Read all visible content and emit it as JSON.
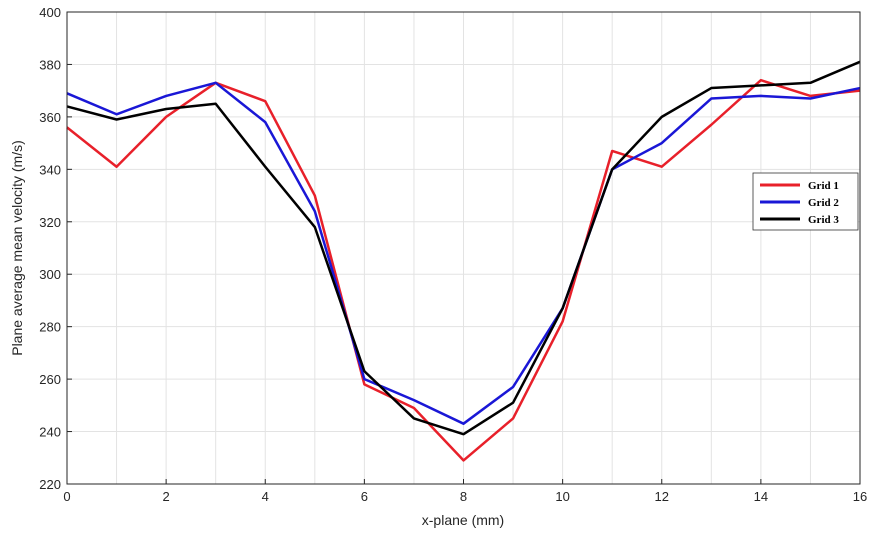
{
  "chart_data": {
    "type": "line",
    "xlabel": "x-plane (mm)",
    "ylabel": "Plane average mean velocity (m/s)",
    "xlim": [
      0,
      16
    ],
    "ylim": [
      220,
      400
    ],
    "xticks": [
      "0",
      "2",
      "4",
      "6",
      "8",
      "10",
      "12",
      "14",
      "16"
    ],
    "yticks": [
      "220",
      "240",
      "260",
      "280",
      "300",
      "320",
      "340",
      "360",
      "380",
      "400"
    ],
    "grid": true,
    "legend_position": "right",
    "x": [
      0,
      1,
      2,
      3,
      4,
      5,
      6,
      7,
      8,
      9,
      10,
      11,
      12,
      13,
      14,
      15,
      16
    ],
    "series": [
      {
        "name": "Grid 1",
        "color": "#e8202a",
        "values": [
          356,
          341,
          360,
          373,
          366,
          330,
          258,
          249,
          229,
          245,
          282,
          347,
          341,
          357,
          374,
          368,
          370
        ]
      },
      {
        "name": "Grid 2",
        "color": "#1a17d6",
        "values": [
          369,
          361,
          368,
          373,
          358,
          324,
          260,
          252,
          243,
          257,
          287,
          340,
          350,
          367,
          368,
          367,
          371
        ]
      },
      {
        "name": "Grid 3",
        "color": "#000000",
        "values": [
          364,
          359,
          363,
          365,
          341,
          318,
          263,
          245,
          239,
          251,
          287,
          340,
          360,
          371,
          372,
          373,
          381
        ]
      }
    ]
  }
}
